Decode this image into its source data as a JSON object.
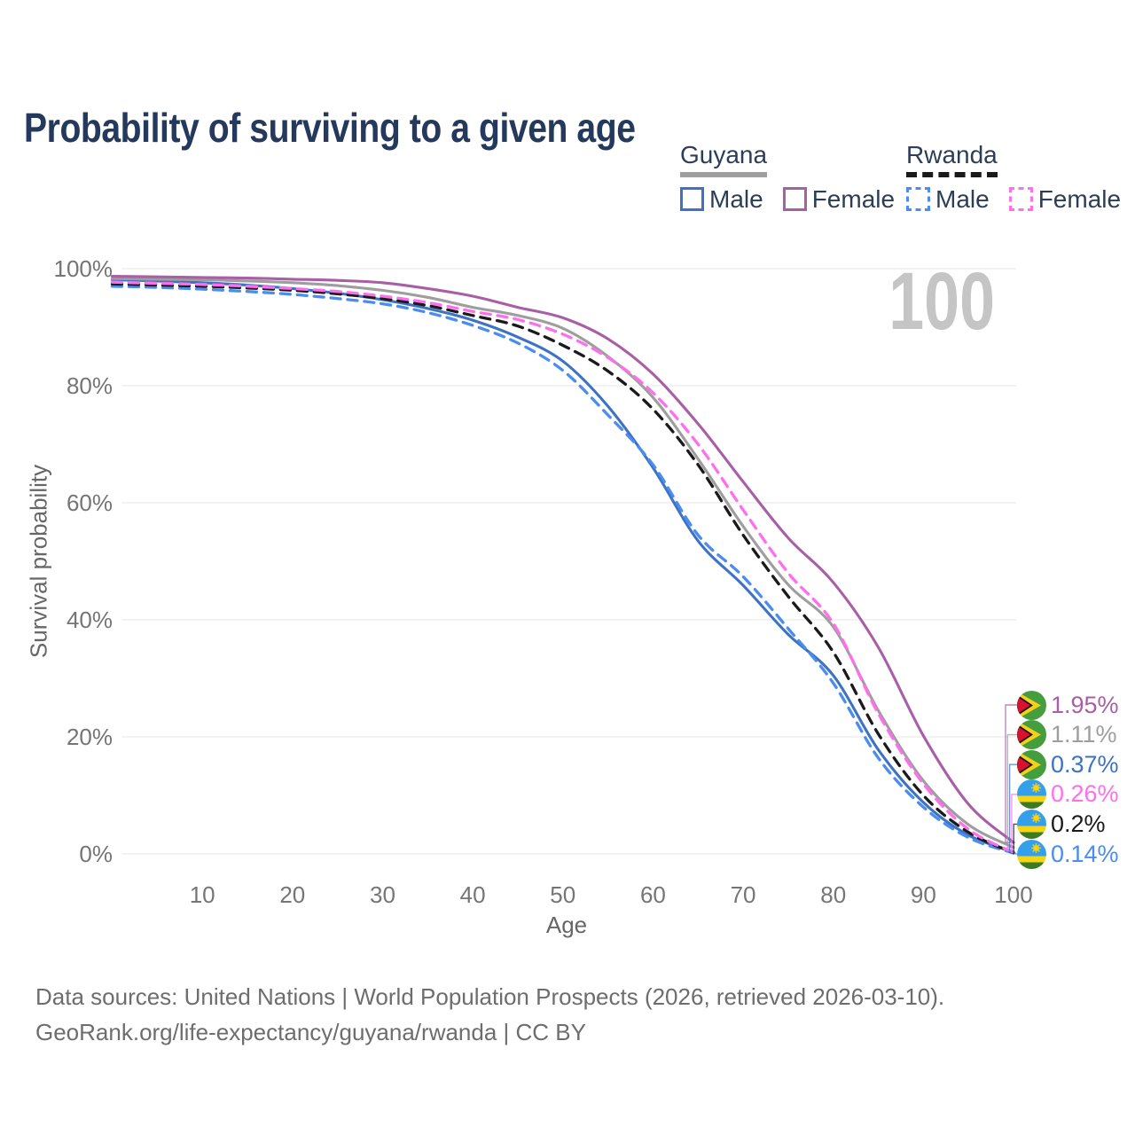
{
  "title": "Probability of surviving to a given age",
  "watermark": "100",
  "legend": {
    "guyana": {
      "label": "Guyana",
      "line_color": "#9e9e9e",
      "line_style": "solid",
      "male_label": "Male",
      "male_color": "#3e72c4",
      "female_label": "Female",
      "female_color": "#a85fa5"
    },
    "rwanda": {
      "label": "Rwanda",
      "line_color": "#1a1a1a",
      "line_style": "dashed",
      "male_label": "Male",
      "male_color": "#4a8cf2",
      "female_label": "Female",
      "female_color": "#ff6eec"
    }
  },
  "chart_data": {
    "type": "line",
    "title": "Probability of surviving to a given age",
    "xlabel": "Age",
    "ylabel": "Survival probability",
    "xlim": [
      0,
      100
    ],
    "ylim": [
      0,
      100
    ],
    "grid": "horizontal",
    "legend_position": "top-right",
    "x_ticks": [
      10,
      20,
      30,
      40,
      50,
      60,
      70,
      80,
      90,
      100
    ],
    "y_ticks": [
      {
        "value": 100,
        "label": "100%"
      },
      {
        "value": 80,
        "label": "80%"
      },
      {
        "value": 60,
        "label": "60%"
      },
      {
        "value": 40,
        "label": "40%"
      },
      {
        "value": 20,
        "label": "20%"
      },
      {
        "value": 0,
        "label": "0%"
      }
    ],
    "x": [
      0,
      5,
      10,
      15,
      20,
      25,
      30,
      35,
      40,
      45,
      50,
      55,
      60,
      65,
      70,
      75,
      80,
      85,
      90,
      95,
      100
    ],
    "series": [
      {
        "name": "Guyana Female",
        "country": "Guyana",
        "sex": "Female",
        "color": "#a85fa5",
        "dashed": false,
        "flag": "guyana",
        "end_label": "1.95%",
        "values": [
          98.7,
          98.6,
          98.5,
          98.4,
          98.2,
          98.0,
          97.6,
          96.6,
          95.3,
          93.4,
          91.6,
          88.0,
          82.0,
          73.5,
          63.6,
          54.0,
          46.4,
          35.3,
          20.2,
          8.5,
          1.95
        ]
      },
      {
        "name": "Guyana Both sexes",
        "country": "Guyana",
        "sex": "Both",
        "color": "#9e9e9e",
        "dashed": false,
        "flag": "guyana",
        "end_label": "1.11%",
        "values": [
          98.3,
          98.2,
          98.1,
          97.9,
          97.6,
          97.1,
          96.3,
          95.1,
          93.4,
          92.0,
          89.8,
          85.0,
          78.0,
          67.5,
          56.0,
          46.0,
          38.8,
          24.5,
          12.5,
          5.0,
          1.11
        ]
      },
      {
        "name": "Guyana Male",
        "country": "Guyana",
        "sex": "Male",
        "color": "#3e72c4",
        "dashed": false,
        "flag": "guyana",
        "end_label": "0.37%",
        "values": [
          98.1,
          97.9,
          97.6,
          97.2,
          96.6,
          95.8,
          94.7,
          93.2,
          91.2,
          88.3,
          84.2,
          76.5,
          66.0,
          53.5,
          45.9,
          37.5,
          30.5,
          17.8,
          8.8,
          3.2,
          0.37
        ]
      },
      {
        "name": "Rwanda Female",
        "country": "Rwanda",
        "sex": "Female",
        "color": "#ff6eec",
        "dashed": true,
        "flag": "rwanda",
        "end_label": "0.26%",
        "values": [
          97.7,
          97.5,
          97.3,
          97.0,
          96.6,
          96.1,
          95.3,
          94.2,
          92.7,
          91.3,
          88.8,
          84.8,
          78.8,
          70.0,
          58.8,
          48.0,
          39.4,
          24.0,
          12.0,
          4.2,
          0.26
        ]
      },
      {
        "name": "Rwanda Both sexes",
        "country": "Rwanda",
        "sex": "Both",
        "color": "#1a1a1a",
        "dashed": true,
        "flag": "rwanda",
        "end_label": "0.2%",
        "values": [
          97.4,
          97.2,
          97.0,
          96.7,
          96.3,
          95.7,
          94.9,
          93.7,
          92.0,
          90.2,
          86.9,
          82.5,
          76.0,
          66.5,
          54.5,
          44.0,
          34.5,
          20.5,
          10.0,
          3.7,
          0.2
        ]
      },
      {
        "name": "Rwanda Male",
        "country": "Rwanda",
        "sex": "Male",
        "color": "#4a8cf2",
        "dashed": true,
        "flag": "rwanda",
        "end_label": "0.14%",
        "values": [
          97.0,
          96.8,
          96.5,
          96.1,
          95.6,
          94.9,
          94.0,
          92.5,
          90.3,
          87.3,
          82.6,
          75.0,
          66.5,
          54.5,
          47.4,
          38.5,
          29.2,
          16.4,
          8.0,
          2.8,
          0.14
        ]
      }
    ]
  },
  "footer": {
    "line1": "Data sources: United Nations | World Population Prospects (2026, retrieved 2026-03-10).",
    "line2": "GeoRank.org/life-expectancy/guyana/rwanda | CC BY"
  }
}
